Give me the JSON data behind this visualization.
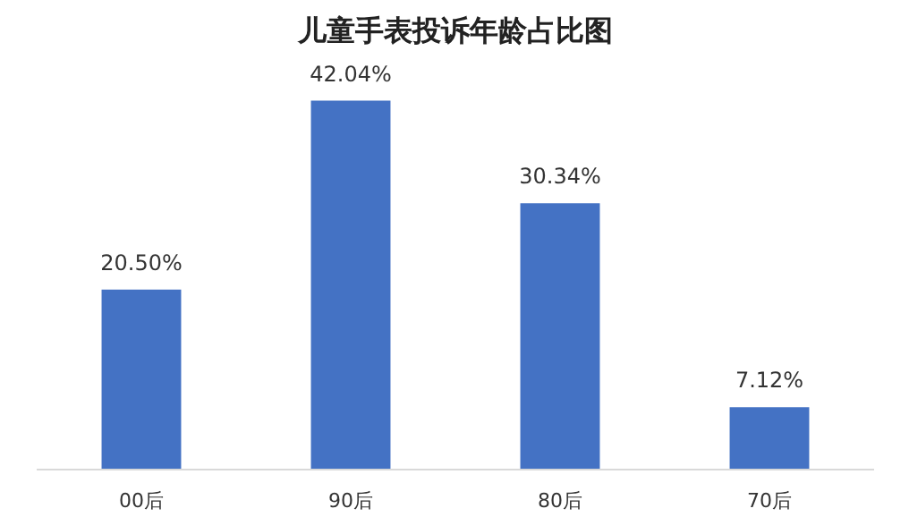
{
  "chart_data": {
    "type": "bar",
    "title": "儿童手表投诉年龄占比图",
    "categories": [
      "00后",
      "90后",
      "80后",
      "70后"
    ],
    "values": [
      20.5,
      42.04,
      30.34,
      7.12
    ],
    "value_labels": [
      "20.50%",
      "42.04%",
      "30.34%",
      "7.12%"
    ],
    "color": "#4472c4",
    "grid": false,
    "tick_labels": "x"
  }
}
